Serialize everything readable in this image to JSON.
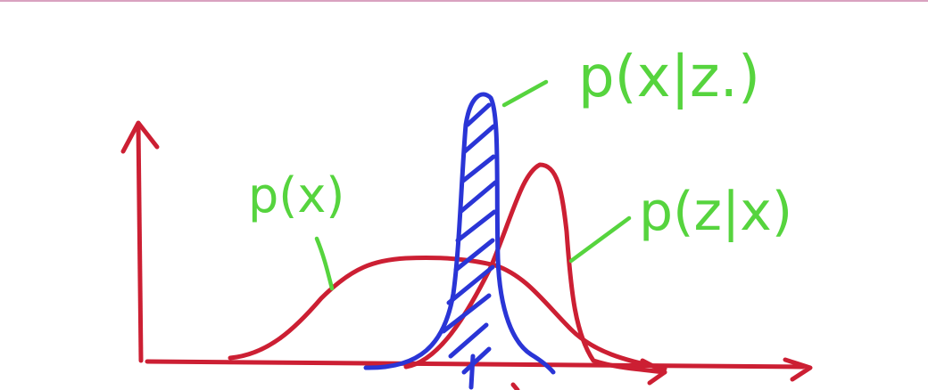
{
  "labels": {
    "p_x": "p(x)",
    "p_x_given_z": "p(x|z.)",
    "p_z_given_x": "p(z|x)"
  },
  "colors": {
    "axes": "#cc1f33",
    "prior_curve": "#cc1f33",
    "likelihood_curve": "#cc1f33",
    "posterior_curve": "#2a35d6",
    "annotations": "#56d43e",
    "top_rule": "#d9a2c0"
  }
}
